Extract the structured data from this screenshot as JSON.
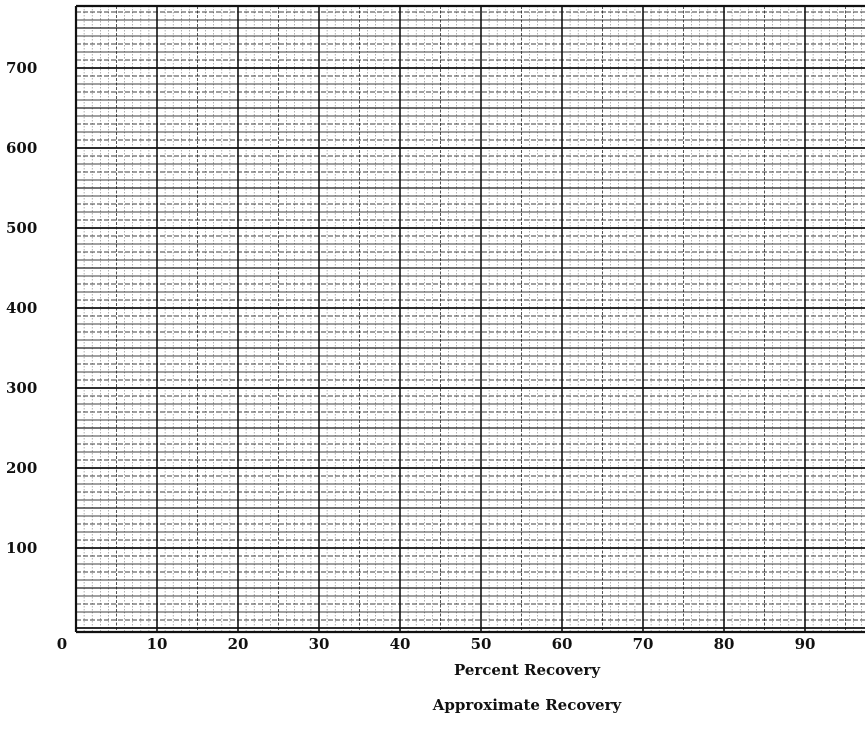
{
  "chart_data": {
    "type": "line",
    "title": "",
    "xlabel": "Percent Recovery",
    "subtitle": "Approximate Recovery",
    "ylabel": "",
    "x_ticks": [
      "0",
      "10",
      "20",
      "30",
      "40",
      "50",
      "60",
      "70",
      "80",
      "90"
    ],
    "y_ticks": [
      "100",
      "200",
      "300",
      "400",
      "500",
      "600",
      "700"
    ],
    "xlim": [
      0,
      100
    ],
    "ylim": [
      0,
      800
    ],
    "grid": true,
    "series": []
  },
  "colors": {
    "ink": "#111111",
    "paper": "#ffffff"
  }
}
